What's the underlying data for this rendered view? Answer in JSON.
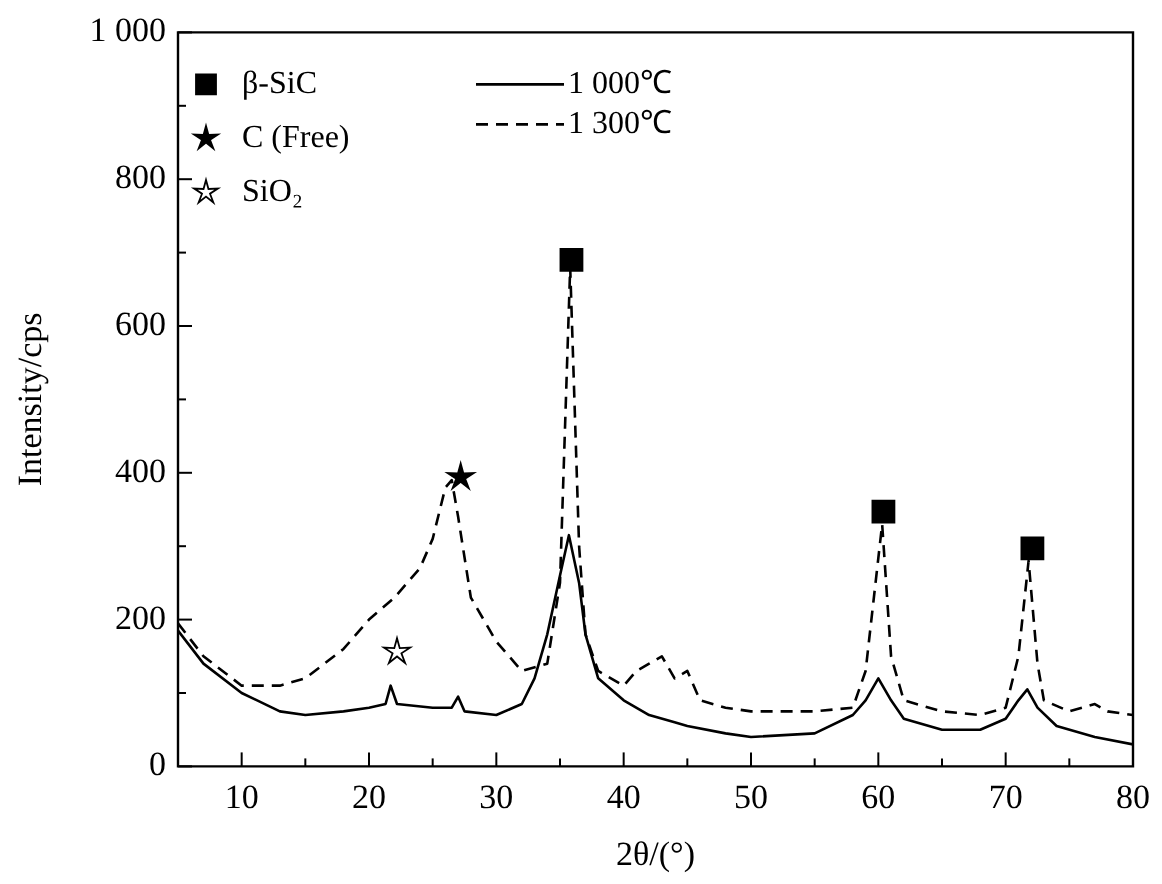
{
  "chart_data": {
    "type": "line",
    "xlabel": "2θ/(°)",
    "ylabel": "Intensity/cps",
    "xlim": [
      5,
      80
    ],
    "xticks": [
      {
        "value": 5,
        "label": null
      },
      10,
      {
        "value": 15,
        "label": null
      },
      20,
      {
        "value": 25,
        "label": null
      },
      30,
      {
        "value": 35,
        "label": null
      },
      40,
      {
        "value": 45,
        "label": null
      },
      50,
      {
        "value": 55,
        "label": null
      },
      60,
      {
        "value": 65,
        "label": null
      },
      70,
      {
        "value": 75,
        "label": null
      },
      80
    ],
    "ylim": [
      0,
      1000
    ],
    "yticks": [
      0,
      {
        "value": 100,
        "label": null
      },
      200,
      {
        "value": 300,
        "label": null
      },
      400,
      {
        "value": 500,
        "label": null
      },
      600,
      {
        "value": 700,
        "label": null
      },
      800,
      {
        "value": 900,
        "label": null
      },
      {
        "value": 1000,
        "label": "1 000"
      }
    ],
    "grid": false,
    "legend": "top left",
    "series": [
      {
        "name": "β-SiC",
        "type": "scatter",
        "marker": "square",
        "color": "#000000",
        "x": [
          35.9,
          60.4,
          72.1
        ],
        "values": [
          690,
          347,
          297
        ]
      },
      {
        "name": "C (Free)",
        "type": "scatter",
        "marker": "star",
        "color": "#000000",
        "x": [
          27.2
        ],
        "values": [
          394
        ]
      },
      {
        "name": "SiO₂",
        "type": "scatter",
        "marker": "star",
        "color": "#ffffff",
        "x": [
          22.2
        ],
        "values": [
          156
        ]
      },
      {
        "name": "1 000℃",
        "line_style": "solid",
        "color": "#000000",
        "x": [
          5,
          7,
          10,
          13,
          15,
          18,
          20,
          21.3,
          21.7,
          22.2,
          25,
          26.5,
          27,
          27.5,
          30,
          32,
          33,
          34,
          35,
          35.7,
          36.5,
          37,
          38,
          40,
          42,
          44,
          45,
          48,
          50,
          55,
          58,
          59,
          60,
          61,
          62,
          65,
          68,
          70,
          71,
          71.7,
          72.5,
          74,
          77,
          80
        ],
        "values": [
          185,
          140,
          100,
          75,
          70,
          75,
          80,
          85,
          110,
          85,
          80,
          80,
          95,
          75,
          70,
          85,
          120,
          180,
          260,
          315,
          250,
          180,
          120,
          90,
          70,
          60,
          55,
          45,
          40,
          45,
          70,
          90,
          120,
          90,
          65,
          50,
          50,
          65,
          90,
          105,
          80,
          55,
          40,
          30
        ]
      },
      {
        "name": "1 300℃",
        "line_style": "dashed",
        "color": "#000000",
        "x": [
          5,
          7,
          10,
          13,
          15,
          18,
          20,
          22,
          24,
          25,
          26,
          26.5,
          27,
          28,
          30,
          32,
          34,
          35,
          35.8,
          36.5,
          37,
          38,
          40,
          41,
          42,
          43,
          44,
          45,
          46,
          48,
          50,
          55,
          58,
          59,
          60.3,
          61,
          62,
          65,
          68,
          70,
          71,
          71.8,
          72.5,
          73,
          75,
          77,
          78,
          80
        ],
        "values": [
          195,
          150,
          110,
          110,
          120,
          160,
          200,
          230,
          270,
          310,
          380,
          390,
          340,
          230,
          170,
          130,
          140,
          250,
          680,
          300,
          180,
          130,
          110,
          130,
          140,
          150,
          120,
          130,
          90,
          80,
          75,
          75,
          80,
          130,
          330,
          150,
          90,
          75,
          70,
          80,
          150,
          280,
          140,
          90,
          75,
          85,
          75,
          70
        ]
      }
    ]
  }
}
